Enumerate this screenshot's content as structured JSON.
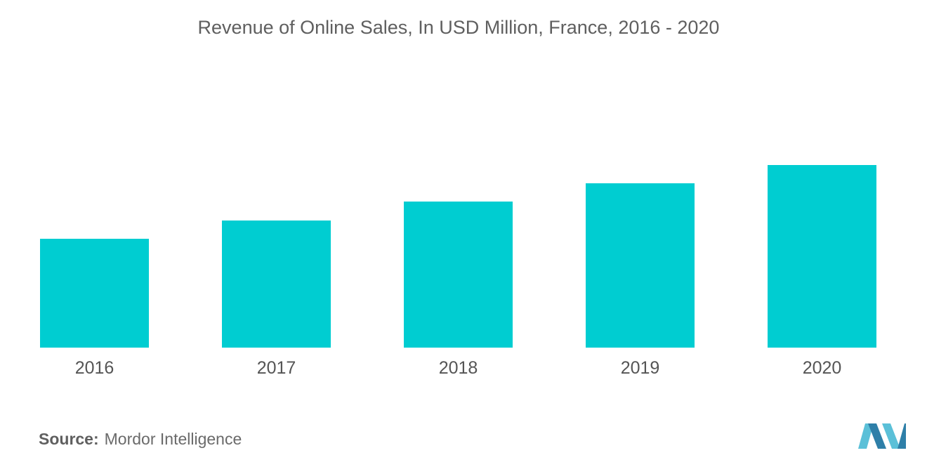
{
  "title": "Revenue of Online Sales, In USD Million, France, 2016 - 2020",
  "source": {
    "label": "Source:",
    "text": "Mordor Intelligence"
  },
  "colors": {
    "bar": "#00CDD1",
    "axis_text": "#555555",
    "logo_light": "#5BC0D8",
    "logo_dark": "#2E7FA8"
  },
  "logo_icon": "mordor-intelligence-logo-icon",
  "chart_data": {
    "type": "bar",
    "categories": [
      "2016",
      "2017",
      "2018",
      "2019",
      "2020"
    ],
    "values": [
      155,
      181,
      208,
      234,
      260
    ],
    "ylim": [
      0,
      300
    ],
    "xlabel": "",
    "ylabel": "",
    "grid": false,
    "legend": "none"
  }
}
